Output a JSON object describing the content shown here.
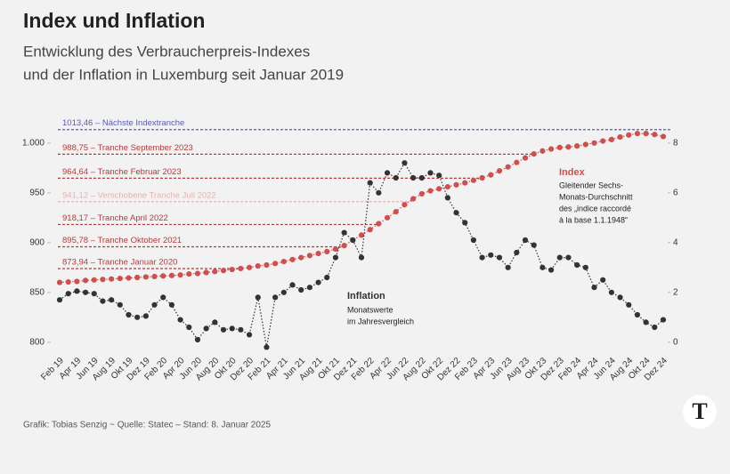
{
  "chart_data": {
    "type": "line",
    "title": "Index und Inflation",
    "subtitle": [
      "Entwicklung des Verbraucherpreis-Indexes",
      "und der Inflation in Luxemburg seit Januar 2019"
    ],
    "categories": [
      "Feb 19",
      null,
      "Apr 19",
      null,
      "Jun 19",
      null,
      "Aug 19",
      null,
      "Okt 19",
      null,
      "Dez 19",
      null,
      "Feb 20",
      null,
      "Apr 20",
      null,
      "Jun 20",
      null,
      "Aug 20",
      null,
      "Okt 20",
      null,
      "Dez 20",
      null,
      "Feb 21",
      null,
      "Apr 21",
      null,
      "Jun 21",
      null,
      "Aug 21",
      null,
      "Okt 21",
      null,
      "Dez 21",
      null,
      "Feb 22",
      null,
      "Apr 22",
      null,
      "Jun 22",
      null,
      "Aug 22",
      null,
      "Okt 22",
      null,
      "Dez 22",
      null,
      "Feb 23",
      null,
      "Apr 23",
      null,
      "Jun 23",
      null,
      "Aug 23",
      null,
      "Okt 23",
      null,
      "Dez 23",
      null,
      "Feb 24",
      null,
      "Apr 24",
      null,
      "Jun 24",
      null,
      "Aug 24",
      null,
      "Okt 24",
      null,
      "Dez 24"
    ],
    "series": [
      {
        "name": "Index",
        "color": "#cf4f4f",
        "values": [
          860,
          860.5,
          861,
          862,
          862.5,
          863,
          863.5,
          864,
          864.5,
          865,
          865.5,
          866,
          866.5,
          867,
          867.5,
          868.5,
          869,
          870,
          871,
          872,
          873,
          874,
          875,
          876.5,
          877.5,
          879,
          881,
          883,
          885,
          887,
          889,
          891,
          893.5,
          897,
          902.5,
          907.5,
          913,
          919,
          925,
          931,
          938,
          944,
          949,
          952,
          954,
          956,
          958,
          960,
          962.5,
          965,
          968,
          972,
          976,
          980.5,
          985,
          989,
          992,
          994,
          995.5,
          996,
          997,
          998.5,
          1000,
          1002,
          1003.5,
          1006,
          1008,
          1009.5,
          1009.5,
          1008.5,
          1006.5
        ]
      },
      {
        "name": "Inflation",
        "color": "#333333",
        "axis": "y2",
        "values": [
          1.7,
          1.95,
          2.05,
          2.0,
          1.95,
          1.65,
          1.7,
          1.5,
          1.1,
          1.0,
          1.05,
          1.5,
          1.8,
          1.5,
          0.9,
          0.6,
          0.1,
          0.55,
          0.8,
          0.5,
          0.55,
          0.5,
          0.3,
          1.8,
          -0.2,
          1.8,
          2.0,
          2.3,
          2.1,
          2.2,
          2.4,
          2.6,
          3.4,
          4.4,
          4.1,
          3.4,
          6.4,
          6.0,
          6.8,
          6.6,
          7.2,
          6.6,
          6.6,
          6.8,
          6.7,
          5.8,
          5.2,
          4.8,
          4.1,
          3.4,
          3.5,
          3.4,
          3.0,
          3.6,
          4.1,
          3.9,
          3.0,
          2.9,
          3.4,
          3.4,
          3.1,
          3.0,
          2.2,
          2.5,
          2.0,
          1.8,
          1.5,
          1.1,
          0.8,
          0.6,
          0.9
        ]
      }
    ],
    "ylim": [
      790,
      1015
    ],
    "yticks": [
      800,
      850,
      900,
      950,
      {
        "value": 1000,
        "label": "1.000"
      }
    ],
    "y2lim": [
      -0.4,
      8.6
    ],
    "y2ticks": [
      0,
      2,
      4,
      6,
      8
    ],
    "reference_lines": [
      {
        "value": 1013.46,
        "label": "1013,46 – Nächste Indextranche",
        "color": "#5a5ab8"
      },
      {
        "value": 988.75,
        "label": "988,75 – Tranche September 2023",
        "color": "#b83a3a"
      },
      {
        "value": 964.64,
        "label": "964,64 – Tranche Februar 2023",
        "color": "#b83a3a"
      },
      {
        "value": 941.12,
        "label": "941,12 – Verschobene Tranche Juli 2022",
        "color": "#eab0b0"
      },
      {
        "value": 918.17,
        "label": "918,17 – Tranche April 2022",
        "color": "#b83a3a"
      },
      {
        "value": 895.78,
        "label": "895,78 – Tranche Oktober 2021",
        "color": "#b83a3a"
      },
      {
        "value": 873.94,
        "label": "873,94 – Tranche Januar 2020",
        "color": "#b83a3a"
      }
    ],
    "annotations": {
      "index_note": [
        "Gleitender Sechs-",
        "Monats-Durchschnitt",
        "des „indice raccordé",
        "à la base 1.1.1948“"
      ],
      "inflation_note": [
        "Monatswerte",
        "im Jahresvergleich"
      ]
    },
    "footer": "Grafik: Tobias Senzig  ~ Quelle: Statec – Stand: 8. Januar 2025",
    "logo": "T"
  }
}
